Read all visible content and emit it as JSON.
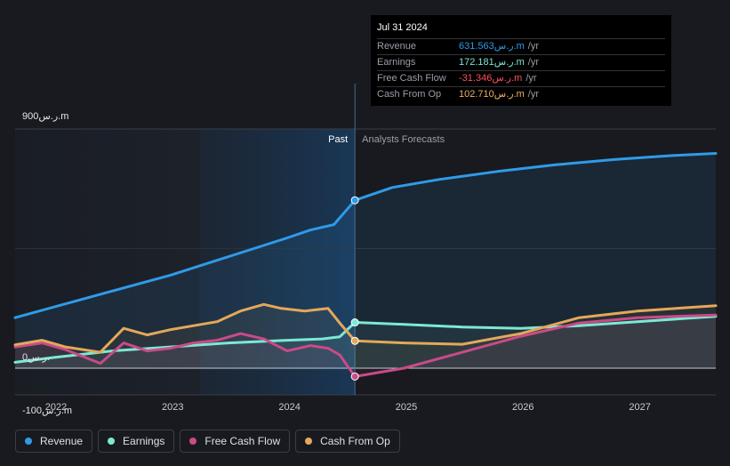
{
  "tooltip": {
    "date": "Jul 31 2024",
    "rows": [
      {
        "label": "Revenue",
        "value": "631.563ر.س.m",
        "unit": "/yr",
        "color": "#2f9be8"
      },
      {
        "label": "Earnings",
        "value": "172.181ر.س.m",
        "unit": "/yr",
        "color": "#7de8d4"
      },
      {
        "label": "Free Cash Flow",
        "value": "-31.346ر.س.m",
        "unit": "/yr",
        "color": "#ff4d61"
      },
      {
        "label": "Cash From Op",
        "value": "102.710ر.س.m",
        "unit": "/yr",
        "color": "#f0b160"
      }
    ]
  },
  "legend": [
    {
      "label": "Revenue",
      "color": "#2f9be8"
    },
    {
      "label": "Earnings",
      "color": "#7de8d4"
    },
    {
      "label": "Free Cash Flow",
      "color": "#c94b87"
    },
    {
      "label": "Cash From Op",
      "color": "#e4a859"
    }
  ],
  "chart_data": {
    "type": "line",
    "title": "",
    "ylim": [
      -100,
      900
    ],
    "y_tick_labels": [
      "900ر.س.m",
      "0ر.س.",
      "-100ر.س.m"
    ],
    "x_tick_labels": [
      "2022",
      "2023",
      "2024",
      "2025",
      "2026",
      "2027"
    ],
    "divider_labels": {
      "past": "Past",
      "forecast": "Analysts Forecasts"
    },
    "divider_x": 2024.58,
    "series": [
      {
        "name": "Revenue",
        "color": "#2f9be8",
        "x": [
          2021.67,
          2022.0,
          2022.5,
          2023.0,
          2023.5,
          2024.0,
          2024.2,
          2024.4,
          2024.58,
          2024.9,
          2025.3,
          2025.8,
          2026.3,
          2026.8,
          2027.3,
          2027.67
        ],
        "y": [
          190,
          230,
          290,
          350,
          420,
          490,
          520,
          540,
          631.563,
          680,
          710,
          740,
          765,
          785,
          800,
          808
        ]
      },
      {
        "name": "Earnings",
        "color": "#7de8d4",
        "x": [
          2021.67,
          2022.0,
          2022.5,
          2023.0,
          2023.5,
          2024.0,
          2024.3,
          2024.45,
          2024.58,
          2025.0,
          2025.5,
          2026.0,
          2026.5,
          2027.0,
          2027.67
        ],
        "y": [
          22,
          40,
          65,
          80,
          95,
          105,
          110,
          118,
          172.181,
          165,
          155,
          150,
          160,
          175,
          195
        ]
      },
      {
        "name": "Free Cash Flow",
        "color": "#c94b87",
        "x": [
          2021.67,
          2021.9,
          2022.1,
          2022.4,
          2022.6,
          2022.8,
          2023.0,
          2023.2,
          2023.4,
          2023.6,
          2023.8,
          2024.0,
          2024.2,
          2024.35,
          2024.45,
          2024.58,
          2025.0,
          2025.5,
          2026.0,
          2026.5,
          2027.0,
          2027.67
        ],
        "y": [
          80,
          95,
          70,
          18,
          95,
          65,
          75,
          95,
          105,
          130,
          110,
          65,
          85,
          75,
          50,
          -31.346,
          0,
          60,
          120,
          170,
          190,
          200
        ]
      },
      {
        "name": "Cash From Op",
        "color": "#e4a859",
        "x": [
          2021.67,
          2021.9,
          2022.1,
          2022.4,
          2022.6,
          2022.8,
          2023.0,
          2023.2,
          2023.4,
          2023.6,
          2023.8,
          2023.95,
          2024.15,
          2024.35,
          2024.45,
          2024.58,
          2025.0,
          2025.5,
          2026.0,
          2026.5,
          2027.0,
          2027.67
        ],
        "y": [
          88,
          105,
          80,
          60,
          150,
          125,
          145,
          160,
          175,
          215,
          240,
          225,
          215,
          225,
          170,
          102.71,
          95,
          90,
          130,
          190,
          215,
          235
        ]
      }
    ]
  }
}
